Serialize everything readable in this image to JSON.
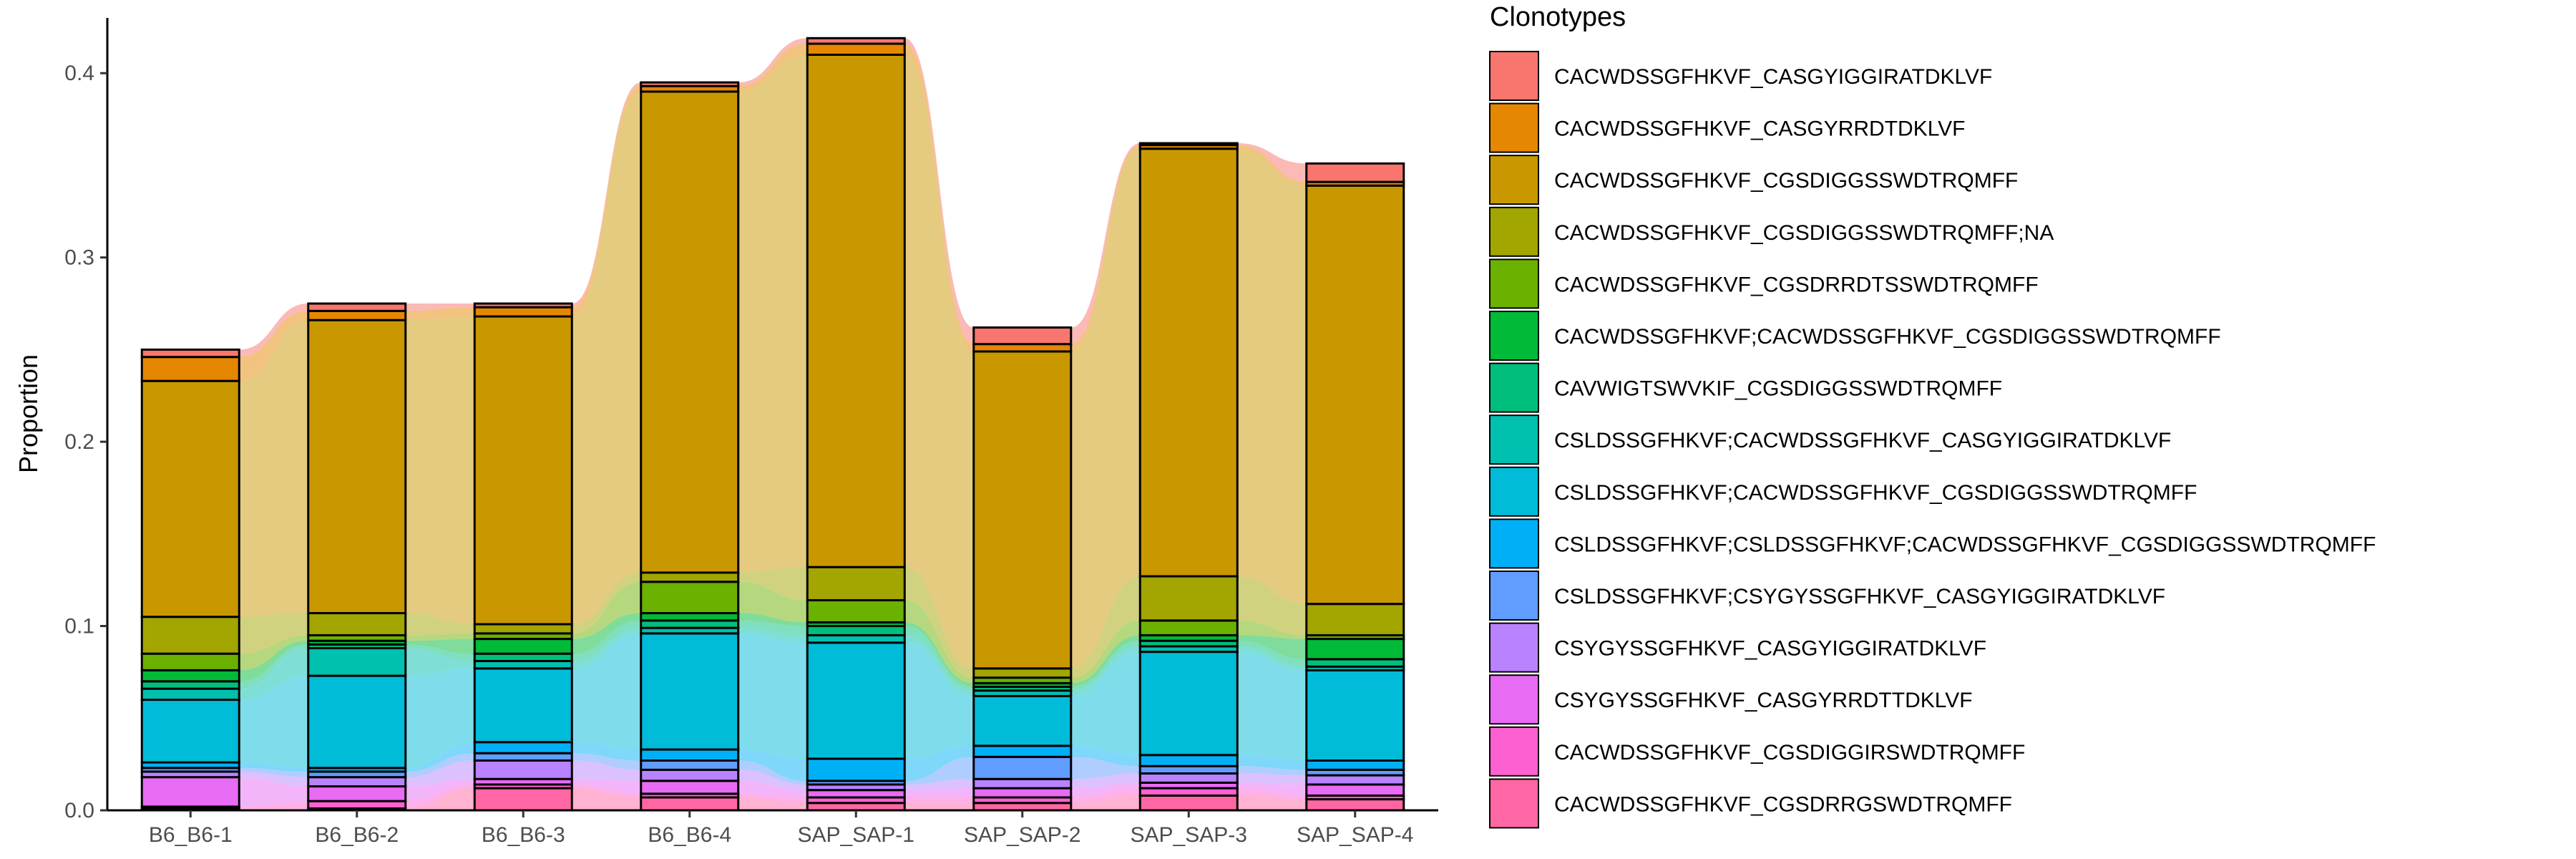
{
  "chart_data": {
    "type": "alluvial stacked bar",
    "title": "",
    "xlabel": "",
    "ylabel": "Proportion",
    "ylim": [
      0,
      0.43
    ],
    "yticks": [
      0.0,
      0.1,
      0.2,
      0.3,
      0.4
    ],
    "ytick_labels": [
      "0.0",
      "0.1",
      "0.2",
      "0.3",
      "0.4"
    ],
    "categories": [
      "B6_B6-1",
      "B6_B6-2",
      "B6_B6-3",
      "B6_B6-4",
      "SAP_SAP-1",
      "SAP_SAP-2",
      "SAP_SAP-3",
      "SAP_SAP-4"
    ],
    "grid": false,
    "legend_title": "Clonotypes",
    "legend_position": "right",
    "series": [
      {
        "name": "CACWDSSGFHKVF_CASGYIGGIRATDKLVF",
        "color": "#F8766D",
        "values": [
          0.004,
          0.004,
          0.002,
          0.002,
          0.003,
          0.009,
          0.001,
          0.01
        ]
      },
      {
        "name": "CACWDSSGFHKVF_CASGYRRDTDKLVF",
        "color": "#E58700",
        "values": [
          0.013,
          0.005,
          0.005,
          0.003,
          0.006,
          0.004,
          0.002,
          0.002
        ]
      },
      {
        "name": "CACWDSSGFHKVF_CGSDIGGSSWDTRQMFF",
        "color": "#C99800",
        "values": [
          0.128,
          0.159,
          0.167,
          0.261,
          0.278,
          0.172,
          0.232,
          0.227
        ]
      },
      {
        "name": "CACWDSSGFHKVF_CGSDIGGSSWDTRQMFF;NA",
        "color": "#A3A500",
        "values": [
          0.02,
          0.012,
          0.005,
          0.005,
          0.018,
          0.005,
          0.024,
          0.017
        ]
      },
      {
        "name": "CACWDSSGFHKVF_CGSDRRDTSSWDTRQMFF",
        "color": "#6BB100",
        "values": [
          0.009,
          0.003,
          0.003,
          0.017,
          0.012,
          0.003,
          0.008,
          0.002
        ]
      },
      {
        "name": "CACWDSSGFHKVF;CACWDSSGFHKVF_CGSDIGGSSWDTRQMFF",
        "color": "#00BA38",
        "values": [
          0.006,
          0.002,
          0.008,
          0.004,
          0.002,
          0.002,
          0.003,
          0.011
        ]
      },
      {
        "name": "CAVWIGTSWVKIF_CGSDIGGSSWDTRQMFF",
        "color": "#00BF7D",
        "values": [
          0.004,
          0.002,
          0.004,
          0.004,
          0.005,
          0.002,
          0.003,
          0.004
        ]
      },
      {
        "name": "CSLDSSGFHKVF;CACWDSSGFHKVF_CASGYIGGIRATDKLVF",
        "color": "#00C0AF",
        "values": [
          0.006,
          0.015,
          0.004,
          0.003,
          0.004,
          0.003,
          0.003,
          0.002
        ]
      },
      {
        "name": "CSLDSSGFHKVF;CACWDSSGFHKVF_CGSDIGGSSWDTRQMFF",
        "color": "#00BCD8",
        "values": [
          0.034,
          0.05,
          0.04,
          0.063,
          0.063,
          0.027,
          0.056,
          0.049
        ]
      },
      {
        "name": "CSLDSSGFHKVF;CSLDSSGFHKVF;CACWDSSGFHKVF_CGSDIGGSSWDTRQMFF",
        "color": "#00B0F6",
        "values": [
          0.003,
          0.002,
          0.006,
          0.006,
          0.012,
          0.006,
          0.006,
          0.005
        ]
      },
      {
        "name": "CSLDSSGFHKVF;CSYGYSSGFHKVF_CASGYIGGIRATDKLVF",
        "color": "#619CFF",
        "values": [
          0.002,
          0.003,
          0.004,
          0.005,
          0.002,
          0.012,
          0.004,
          0.003
        ]
      },
      {
        "name": "CSYGYSSGFHKVF_CASGYIGGIRATDKLVF",
        "color": "#B983FF",
        "values": [
          0.003,
          0.005,
          0.01,
          0.006,
          0.003,
          0.005,
          0.005,
          0.005
        ]
      },
      {
        "name": "CSYGYSSGFHKVF_CASGYRRDTTDKLVF",
        "color": "#E76BF3",
        "values": [
          0.016,
          0.008,
          0.003,
          0.007,
          0.004,
          0.005,
          0.003,
          0.006
        ]
      },
      {
        "name": "CACWDSSGFHKVF_CGSDIGGIRSWDTRQMFF",
        "color": "#FD61D1",
        "values": [
          0.001,
          0.004,
          0.002,
          0.002,
          0.003,
          0.003,
          0.004,
          0.002
        ]
      },
      {
        "name": "CACWDSSGFHKVF_CGSDRRGSWDTRQMFF",
        "color": "#FF67A4",
        "values": [
          0.001,
          0.001,
          0.012,
          0.007,
          0.004,
          0.004,
          0.008,
          0.006
        ]
      }
    ]
  }
}
